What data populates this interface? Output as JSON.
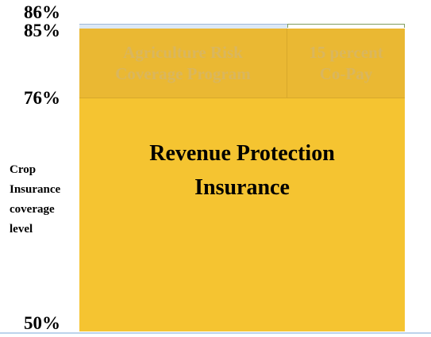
{
  "axis": {
    "title": "Crop Insurance coverage level",
    "ticks": [
      "86%",
      "85%",
      "76%",
      "50%"
    ]
  },
  "blocks": [
    {
      "label": "Agriculture Risk Coverage Program"
    },
    {
      "label": "15 percent Co-Pay"
    },
    {
      "label": "Revenue Protection Insurance"
    }
  ]
}
